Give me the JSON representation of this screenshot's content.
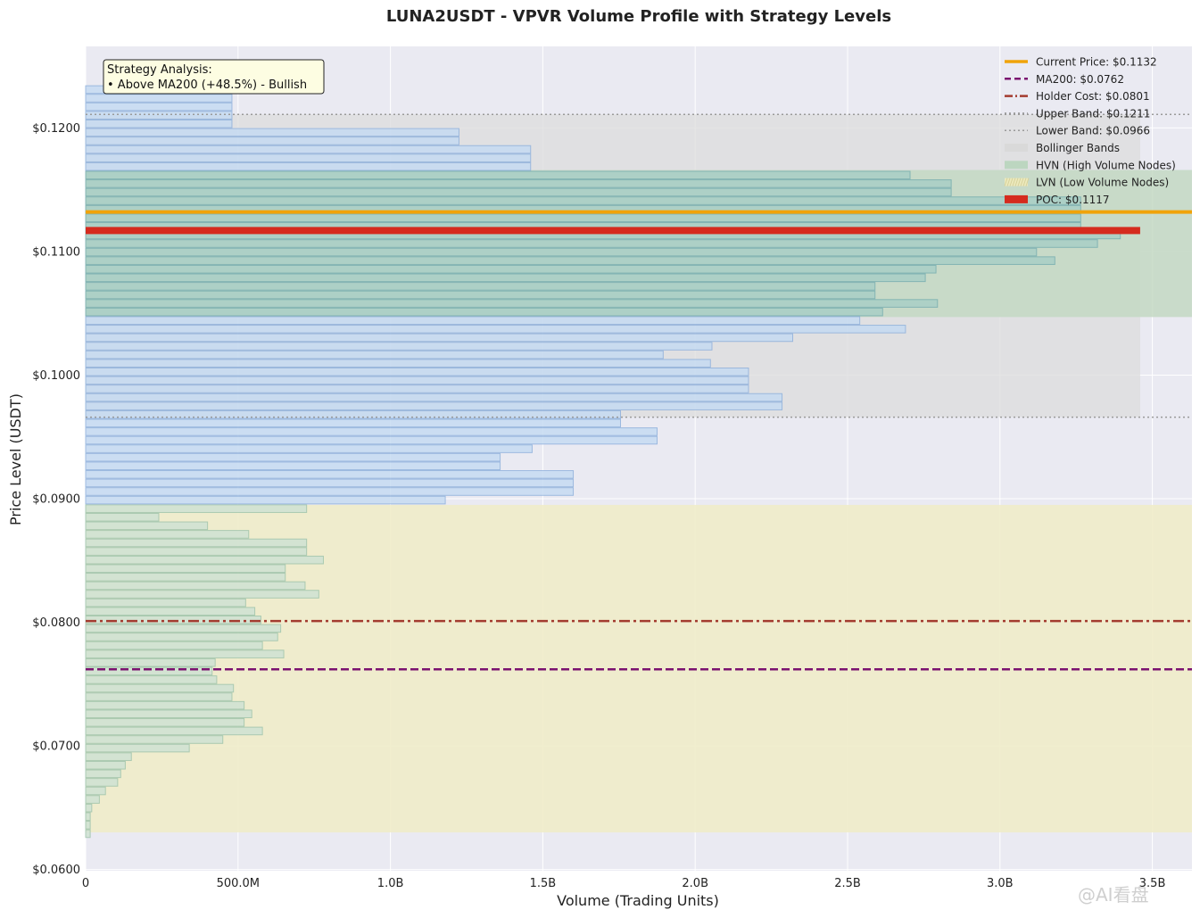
{
  "chart_data": {
    "type": "bar",
    "orientation": "horizontal",
    "title": "LUNA2USDT - VPVR Volume Profile with Strategy Levels",
    "xlabel": "Volume (Trading Units)",
    "ylabel": "Price Level (USDT)",
    "xlim": [
      0,
      3630000000
    ],
    "ylim": [
      0.0599,
      0.1266
    ],
    "x_ticks": [
      0,
      500000000,
      1000000000,
      1500000000,
      2000000000,
      2500000000,
      3000000000,
      3500000000
    ],
    "x_tick_labels": [
      "0",
      "500.0M",
      "1.0B",
      "1.5B",
      "2.0B",
      "2.5B",
      "3.0B",
      "3.5B"
    ],
    "y_ticks": [
      0.06,
      0.07,
      0.08,
      0.09,
      0.1,
      0.11,
      0.12
    ],
    "y_tick_labels": [
      "$0.0600",
      "$0.0700",
      "$0.0800",
      "$0.0900",
      "$0.1000",
      "$0.1100",
      "$0.1200"
    ],
    "grid": true,
    "legend_position": "top-right",
    "bin_start": 0.0629,
    "bin_step": 0.000692,
    "volumes": [
      15000000,
      15000000,
      15000000,
      20000000,
      45000000,
      65000000,
      105000000,
      115000000,
      130000000,
      150000000,
      340000000,
      450000000,
      580000000,
      520000000,
      545000000,
      520000000,
      480000000,
      485000000,
      430000000,
      415000000,
      425000000,
      650000000,
      580000000,
      630000000,
      640000000,
      575000000,
      555000000,
      525000000,
      765000000,
      720000000,
      655000000,
      655000000,
      780000000,
      725000000,
      725000000,
      535000000,
      400000000,
      240000000,
      725000000,
      1180000000,
      1600000000,
      1600000000,
      1600000000,
      1360000000,
      1360000000,
      1465000000,
      1875000000,
      1875000000,
      1755000000,
      1755000000,
      2285000000,
      2285000000,
      2175000000,
      2175000000,
      2175000000,
      2050000000,
      1895000000,
      2055000000,
      2320000000,
      2690000000,
      2540000000,
      2615000000,
      2795000000,
      2590000000,
      2590000000,
      2755000000,
      2790000000,
      3180000000,
      3120000000,
      3320000000,
      3395000000,
      3265000000,
      3265000000,
      3265000000,
      3265000000,
      2840000000,
      2840000000,
      2705000000,
      1460000000,
      1460000000,
      1460000000,
      1225000000,
      1225000000,
      480000000,
      480000000,
      480000000,
      480000000,
      480000000
    ],
    "levels": {
      "current_price": 0.1132,
      "ma200": 0.0762,
      "holder_cost": 0.0801,
      "upper_band": 0.1211,
      "lower_band": 0.0966,
      "poc": 0.1117
    },
    "hvn_range": [
      0.1047,
      0.1166
    ],
    "lvn_range": [
      0.063,
      0.0895
    ],
    "bollinger_x_extent": 3460000000,
    "colors": {
      "background": "#eaeaf2",
      "bar_normal_fill": "#c6dbf2",
      "bar_normal_edge": "#8fb1dc",
      "bar_lvn_fill": "#cfe2d3",
      "bar_lvn_edge": "#9fc4ac",
      "bar_hvn_fill": "#a9cfc6",
      "bar_hvn_edge": "#78aeb0",
      "bollinger": "#dcdcdc",
      "hvn": "#c3d8c3",
      "lvn": "#efecc9",
      "current_price": "#f0a30a",
      "ma200": "#7b1370",
      "holder_cost": "#a33b2f",
      "band": "#9a9a9a",
      "poc": "#d52b1e"
    },
    "legend": [
      {
        "label": "Current Price: $0.1132",
        "style": "solid-line",
        "color": "#f0a30a"
      },
      {
        "label": "MA200: $0.0762",
        "style": "dashed-line",
        "color": "#7b1370"
      },
      {
        "label": "Holder Cost: $0.0801",
        "style": "dashdot-line",
        "color": "#a33b2f"
      },
      {
        "label": "Upper Band: $0.1211",
        "style": "dotted-line",
        "color": "#9a9a9a"
      },
      {
        "label": "Lower Band: $0.0966",
        "style": "dotted-line",
        "color": "#9a9a9a"
      },
      {
        "label": "Bollinger Bands",
        "style": "patch",
        "color": "#d9d9d9"
      },
      {
        "label": "HVN (High Volume Nodes)",
        "style": "patch",
        "color": "#bcd6c0"
      },
      {
        "label": "LVN (Low Volume Nodes)",
        "style": "hatched-patch",
        "color": "#ece9bd"
      },
      {
        "label": "POC: $0.1117",
        "style": "patch",
        "color": "#d52b1e"
      }
    ],
    "annotation": {
      "lines": [
        "Strategy Analysis:",
        "• Above MA200 (+48.5%) - Bullish"
      ]
    }
  },
  "watermark": "@AI看盘"
}
